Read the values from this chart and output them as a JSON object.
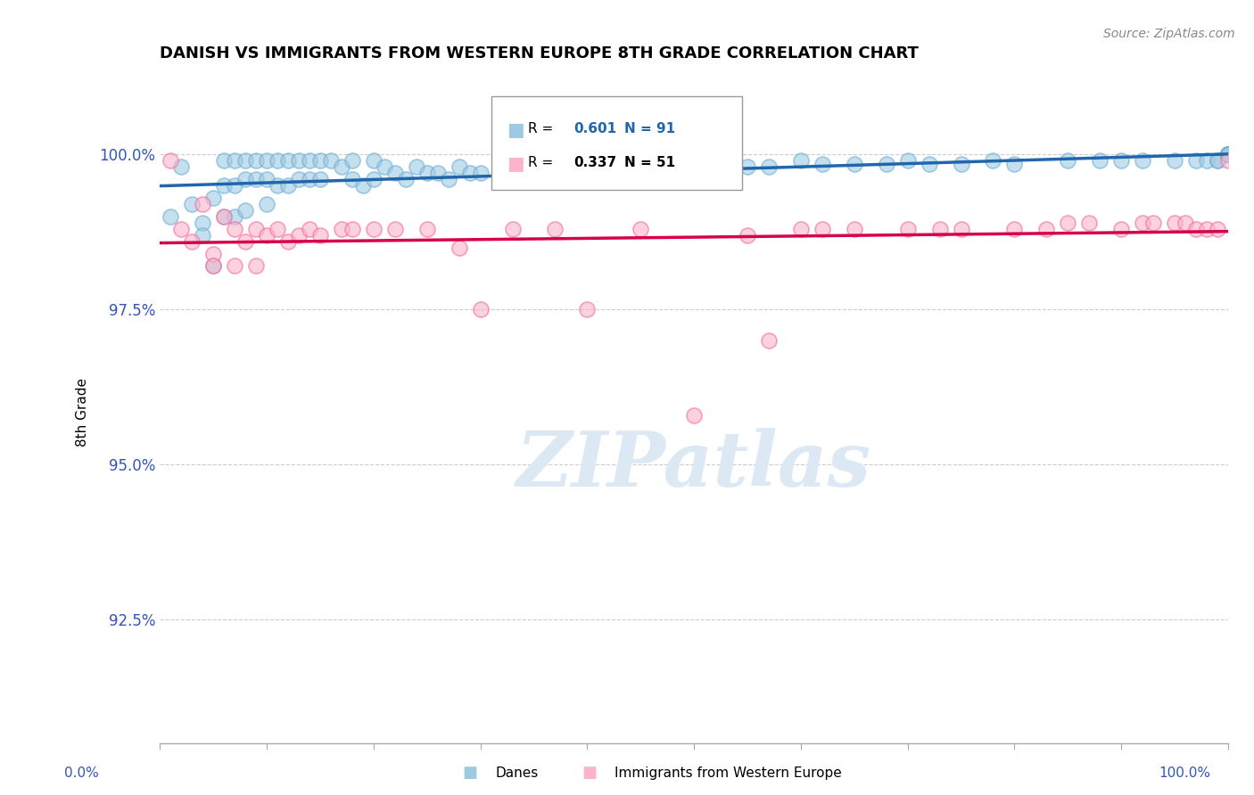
{
  "title": "DANISH VS IMMIGRANTS FROM WESTERN EUROPE 8TH GRADE CORRELATION CHART",
  "source": "Source: ZipAtlas.com",
  "ylabel": "8th Grade",
  "yaxis_ticks": [
    1.0,
    0.975,
    0.95,
    0.925
  ],
  "yaxis_labels": [
    "100.0%",
    "97.5%",
    "95.0%",
    "92.5%"
  ],
  "xaxis_range": [
    0.0,
    1.0
  ],
  "yaxis_range": [
    0.905,
    1.012
  ],
  "danes_R": 0.601,
  "danes_N": 91,
  "immigrants_R": 0.337,
  "immigrants_N": 51,
  "danes_color": "#9ecae1",
  "danes_edge_color": "#6baed6",
  "immigrants_color": "#fbb4c9",
  "immigrants_edge_color": "#f768a1",
  "danes_line_color": "#2166ac",
  "immigrants_line_color": "#d6004c",
  "watermark_color": "#dce9f5",
  "legend_danes": "Danes",
  "legend_immigrants": "Immigrants from Western Europe",
  "danes_x": [
    0.01,
    0.02,
    0.03,
    0.04,
    0.04,
    0.05,
    0.05,
    0.06,
    0.06,
    0.06,
    0.07,
    0.07,
    0.07,
    0.08,
    0.08,
    0.08,
    0.09,
    0.09,
    0.1,
    0.1,
    0.1,
    0.11,
    0.11,
    0.12,
    0.12,
    0.13,
    0.13,
    0.14,
    0.14,
    0.15,
    0.15,
    0.16,
    0.17,
    0.18,
    0.18,
    0.19,
    0.2,
    0.2,
    0.21,
    0.22,
    0.23,
    0.24,
    0.25,
    0.26,
    0.27,
    0.28,
    0.29,
    0.3,
    0.32,
    0.35,
    0.36,
    0.38,
    0.4,
    0.42,
    0.45,
    0.48,
    0.5,
    0.52,
    0.55,
    0.57,
    0.6,
    0.62,
    0.65,
    0.68,
    0.7,
    0.72,
    0.75,
    0.78,
    0.8,
    0.85,
    0.88,
    0.9,
    0.92,
    0.95,
    0.97,
    0.98,
    0.99,
    0.99,
    1.0,
    1.0,
    1.0,
    1.0,
    1.0,
    1.0,
    1.0,
    1.0,
    1.0,
    1.0,
    1.0,
    1.0,
    1.0
  ],
  "danes_y": [
    0.99,
    0.998,
    0.992,
    0.989,
    0.987,
    0.993,
    0.982,
    0.999,
    0.995,
    0.99,
    0.999,
    0.995,
    0.99,
    0.999,
    0.996,
    0.991,
    0.999,
    0.996,
    0.999,
    0.996,
    0.992,
    0.999,
    0.995,
    0.999,
    0.995,
    0.999,
    0.996,
    0.999,
    0.996,
    0.999,
    0.996,
    0.999,
    0.998,
    0.999,
    0.996,
    0.995,
    0.999,
    0.996,
    0.998,
    0.997,
    0.996,
    0.998,
    0.997,
    0.997,
    0.996,
    0.998,
    0.997,
    0.997,
    0.997,
    0.996,
    0.997,
    0.997,
    0.997,
    0.997,
    0.997,
    0.998,
    0.998,
    0.998,
    0.998,
    0.998,
    0.999,
    0.9985,
    0.9985,
    0.9985,
    0.999,
    0.9985,
    0.9985,
    0.999,
    0.9985,
    0.999,
    0.999,
    0.999,
    0.999,
    0.999,
    0.999,
    0.999,
    0.999,
    0.999,
    1.0,
    1.0,
    1.0,
    1.0,
    1.0,
    1.0,
    1.0,
    1.0,
    1.0,
    1.0,
    1.0,
    1.0,
    1.0
  ],
  "immigrants_x": [
    0.01,
    0.02,
    0.03,
    0.04,
    0.05,
    0.05,
    0.06,
    0.07,
    0.07,
    0.08,
    0.09,
    0.09,
    0.1,
    0.11,
    0.12,
    0.13,
    0.14,
    0.15,
    0.17,
    0.18,
    0.2,
    0.22,
    0.25,
    0.28,
    0.3,
    0.33,
    0.37,
    0.4,
    0.45,
    0.5,
    0.55,
    0.57,
    0.6,
    0.62,
    0.65,
    0.7,
    0.73,
    0.75,
    0.8,
    0.83,
    0.85,
    0.87,
    0.9,
    0.92,
    0.93,
    0.95,
    0.96,
    0.97,
    0.98,
    0.99,
    1.0
  ],
  "immigrants_y": [
    0.999,
    0.988,
    0.986,
    0.992,
    0.984,
    0.982,
    0.99,
    0.988,
    0.982,
    0.986,
    0.988,
    0.982,
    0.987,
    0.988,
    0.986,
    0.987,
    0.988,
    0.987,
    0.988,
    0.988,
    0.988,
    0.988,
    0.988,
    0.985,
    0.975,
    0.988,
    0.988,
    0.975,
    0.988,
    0.958,
    0.987,
    0.97,
    0.988,
    0.988,
    0.988,
    0.988,
    0.988,
    0.988,
    0.988,
    0.988,
    0.989,
    0.989,
    0.988,
    0.989,
    0.989,
    0.989,
    0.989,
    0.988,
    0.988,
    0.988,
    0.999
  ]
}
